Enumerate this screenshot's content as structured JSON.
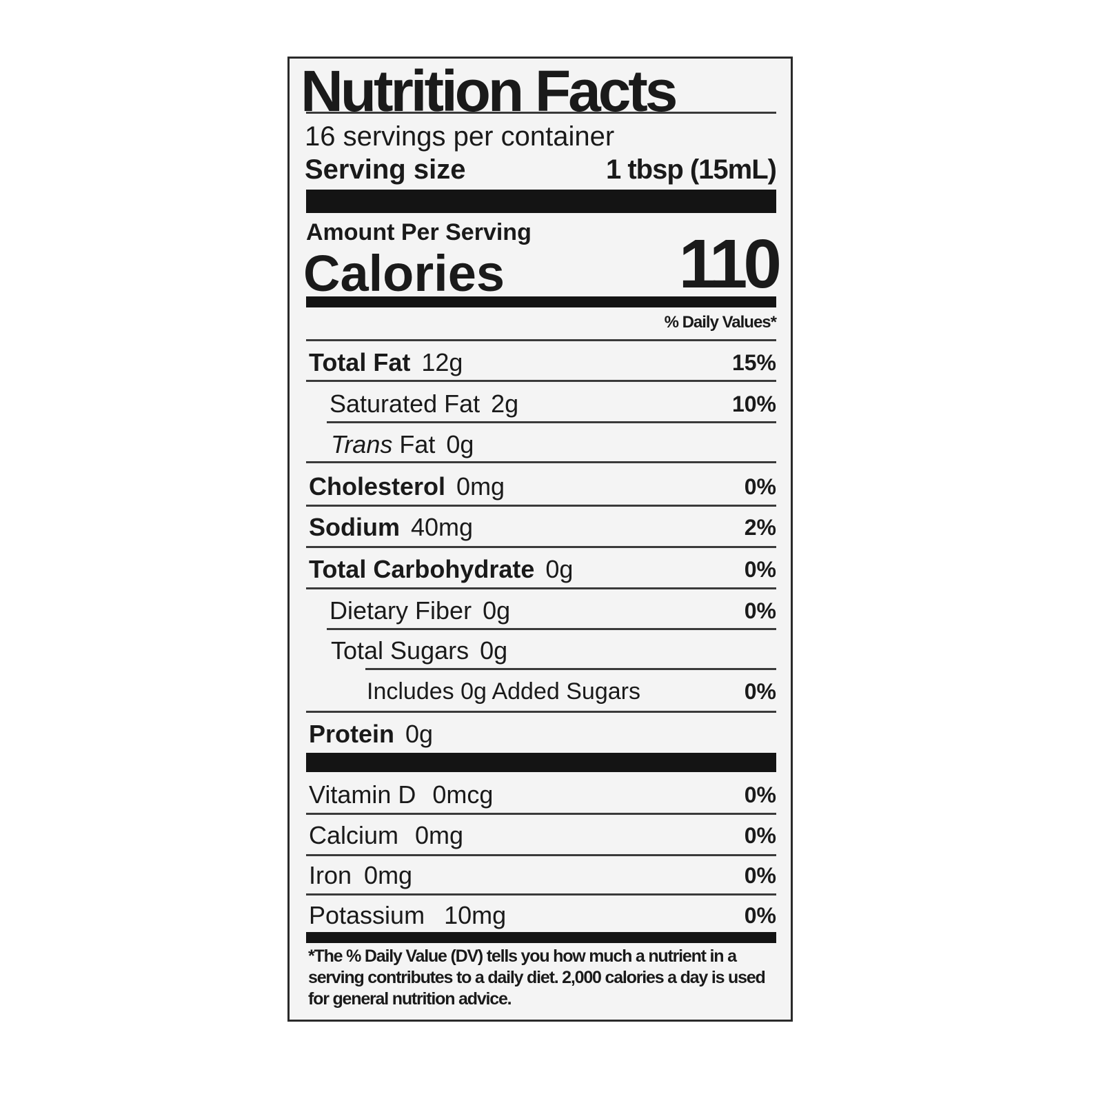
{
  "title": "Nutrition Facts",
  "servings_per_container": "16 servings per container",
  "serving_size_label": "Serving size",
  "serving_size_value": "1 tbsp (15mL)",
  "amount_per_serving": "Amount Per Serving",
  "calories_label": "Calories",
  "calories_value": "110",
  "daily_values_header": "% Daily Values*",
  "nutrients": [
    {
      "name": "Total Fat",
      "amount": "12g",
      "dv": "15%"
    },
    {
      "name": "Saturated Fat",
      "amount": "2g",
      "dv": "10%"
    },
    {
      "name_italic": "Trans",
      "name": "Fat",
      "amount": "0g",
      "dv": ""
    },
    {
      "name": "Cholesterol",
      "amount": "0mg",
      "dv": "0%"
    },
    {
      "name": "Sodium",
      "amount": "40mg",
      "dv": "2%"
    },
    {
      "name": "Total Carbohydrate",
      "amount": "0g",
      "dv": "0%"
    },
    {
      "name": "Dietary Fiber",
      "amount": "0g",
      "dv": "0%"
    },
    {
      "name": "Total Sugars",
      "amount": "0g",
      "dv": ""
    },
    {
      "name": "Includes 0g Added Sugars",
      "amount": "",
      "dv": "0%"
    },
    {
      "name": "Protein",
      "amount": "0g",
      "dv": ""
    }
  ],
  "vitamins": [
    {
      "name": "Vitamin D",
      "amount": "0mcg",
      "dv": "0%"
    },
    {
      "name": "Calcium",
      "amount": "0mg",
      "dv": "0%"
    },
    {
      "name": "Iron",
      "amount": "0mg",
      "dv": "0%"
    },
    {
      "name": "Potassium",
      "amount": "10mg",
      "dv": "0%"
    }
  ],
  "footnote": "*The % Daily Value (DV) tells you how much a nutrient in a serving contributes to a daily diet. 2,000 calories a day is used for general nutrition advice."
}
